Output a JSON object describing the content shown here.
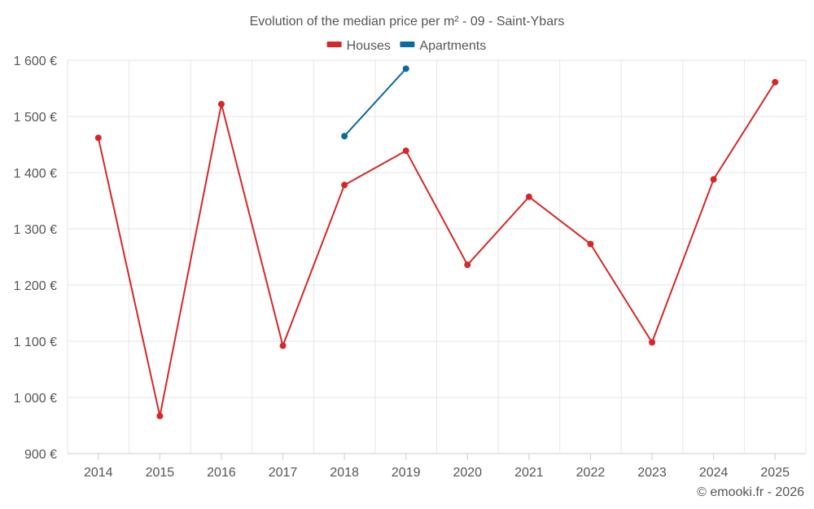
{
  "chart_data": {
    "type": "line",
    "title": "Evolution of the median price per m² - 09 - Saint-Ybars",
    "categories": [
      "2014",
      "2015",
      "2016",
      "2017",
      "2018",
      "2019",
      "2020",
      "2021",
      "2022",
      "2023",
      "2024",
      "2025"
    ],
    "series": [
      {
        "name": "Houses",
        "color": "#d62728",
        "values": [
          1462,
          967,
          1522,
          1092,
          1378,
          1439,
          1236,
          1357,
          1273,
          1098,
          1388,
          1561
        ]
      },
      {
        "name": "Apartments",
        "color": "#0b6b9a",
        "values": [
          null,
          null,
          null,
          null,
          1465,
          1585,
          null,
          null,
          null,
          null,
          null,
          null
        ]
      }
    ],
    "ylim": [
      900,
      1600
    ],
    "yticks": [
      900,
      1000,
      1100,
      1200,
      1300,
      1400,
      1500,
      1600
    ],
    "ytick_labels": [
      "900 €",
      "1 000 €",
      "1 100 €",
      "1 200 €",
      "1 300 €",
      "1 400 €",
      "1 500 €",
      "1 600 €"
    ],
    "xlabel": "",
    "ylabel": "",
    "grid": true,
    "legend_position": "top-center"
  },
  "credit": "© emooki.fr - 2026"
}
